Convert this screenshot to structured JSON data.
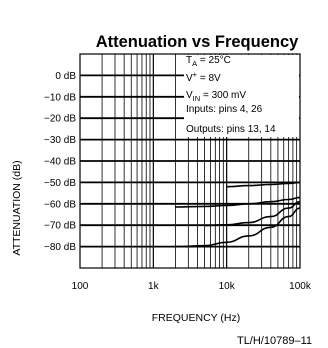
{
  "chart_data": {
    "type": "line",
    "title": "Attenuation vs Frequency",
    "xlabel": "FREQUENCY (Hz)",
    "ylabel": "ATTENUATION (dB)",
    "x_scale": "log",
    "xlim": [
      100,
      100000
    ],
    "ylim": [
      -90,
      10
    ],
    "grid": true,
    "x_ticks": [
      {
        "value": 100,
        "label": "100"
      },
      {
        "value": 1000,
        "label": "1k"
      },
      {
        "value": 10000,
        "label": "10k"
      },
      {
        "value": 100000,
        "label": "100k"
      }
    ],
    "y_ticks": [
      {
        "value": 0,
        "label": "0 dB"
      },
      {
        "value": -10,
        "label": "−10 dB"
      },
      {
        "value": -20,
        "label": "−20 dB"
      },
      {
        "value": -30,
        "label": "−30 dB"
      },
      {
        "value": -40,
        "label": "−40 dB"
      },
      {
        "value": -50,
        "label": "−50 dB"
      },
      {
        "value": -60,
        "label": "−60 dB"
      },
      {
        "value": -70,
        "label": "−70 dB"
      },
      {
        "value": -80,
        "label": "−80 dB"
      }
    ],
    "series": [
      {
        "x": [
          10000,
          20000,
          40000,
          70000,
          100000
        ],
        "y": [
          -52,
          -51.5,
          -51,
          -50.5,
          -50
        ]
      },
      {
        "x": [
          2000,
          5000,
          10000,
          20000,
          40000,
          70000,
          100000
        ],
        "y": [
          -61.5,
          -61.2,
          -60.8,
          -60,
          -59,
          -58,
          -57
        ]
      },
      {
        "x": [
          5000,
          10000,
          20000,
          40000,
          70000,
          100000
        ],
        "y": [
          -70.2,
          -69.8,
          -68.8,
          -66,
          -62,
          -59
        ]
      },
      {
        "x": [
          2000,
          5000,
          10000,
          20000,
          40000,
          70000,
          100000
        ],
        "y": [
          -80,
          -79.6,
          -78,
          -75,
          -71,
          -66,
          -62
        ]
      }
    ]
  },
  "annotations": {
    "ta_main": "T",
    "ta_sub": "A",
    "ta_val": " = 25°C",
    "v_main": "V",
    "v_sup": "+",
    "v_val": " = 8V",
    "vin_main": "V",
    "vin_sub": "IN",
    "vin_val": " = 300 mV",
    "inputs": "Inputs: pins 4, 26",
    "outputs": "Outputs: pins 13, 14"
  },
  "figure_id": "TL/H/10789–11",
  "style": {
    "ink": "#000000",
    "background": "#ffffff"
  }
}
